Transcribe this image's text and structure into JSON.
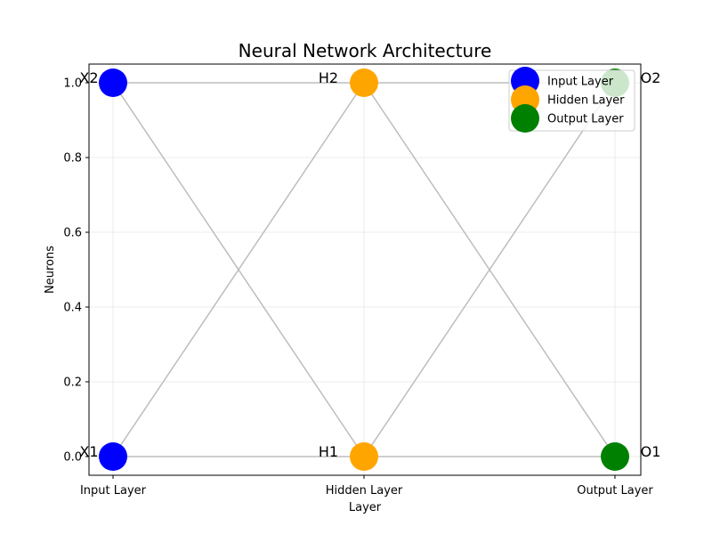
{
  "chart_data": {
    "type": "scatter",
    "title": "Neural Network Architecture",
    "xlabel": "Layer",
    "ylabel": "Neurons",
    "x_categories": [
      "Input Layer",
      "Hidden Layer",
      "Output Layer"
    ],
    "yticks": [
      "0.0",
      "0.2",
      "0.4",
      "0.6",
      "0.8",
      "1.0"
    ],
    "ylim": [
      -0.05,
      1.05
    ],
    "grid": true,
    "legend_position": "top-right",
    "series": [
      {
        "name": "Input Layer",
        "color": "#0000ff",
        "points": [
          {
            "x": "Input Layer",
            "y": 0.0,
            "label": "X1"
          },
          {
            "x": "Input Layer",
            "y": 1.0,
            "label": "X2"
          }
        ]
      },
      {
        "name": "Hidden Layer",
        "color": "#ffa500",
        "points": [
          {
            "x": "Hidden Layer",
            "y": 0.0,
            "label": "H1"
          },
          {
            "x": "Hidden Layer",
            "y": 1.0,
            "label": "H2"
          }
        ]
      },
      {
        "name": "Output Layer",
        "color": "#008000",
        "points": [
          {
            "x": "Output Layer",
            "y": 0.0,
            "label": "O1"
          },
          {
            "x": "Output Layer",
            "y": 1.0,
            "label": "O2"
          }
        ]
      }
    ],
    "connections": [
      {
        "from": "X1",
        "to": "H1"
      },
      {
        "from": "X1",
        "to": "H2"
      },
      {
        "from": "X2",
        "to": "H1"
      },
      {
        "from": "X2",
        "to": "H2"
      },
      {
        "from": "H1",
        "to": "O1"
      },
      {
        "from": "H1",
        "to": "O2"
      },
      {
        "from": "H2",
        "to": "O1"
      },
      {
        "from": "H2",
        "to": "O2"
      }
    ],
    "connection_color": "#bdbdbd"
  }
}
